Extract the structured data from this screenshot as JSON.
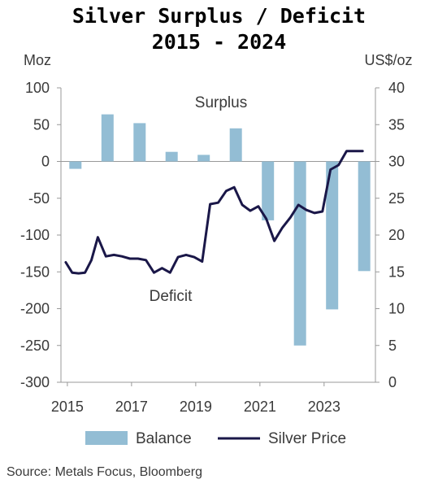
{
  "title_line1": "Silver Surplus / Deficit",
  "title_line2": "2015 - 2024",
  "source": "Source: Metals Focus, Bloomberg",
  "colors": {
    "bar": "#93bdd4",
    "line": "#1a1748",
    "axis": "#999999",
    "text": "#3a3a3a"
  },
  "chart_data": {
    "type": "bar",
    "title": "Silver Surplus / Deficit 2015 - 2024",
    "y_left_label": "Moz",
    "y_right_label": "US$/oz",
    "y_left_lim": [
      -300,
      100
    ],
    "y_right_lim": [
      0,
      40
    ],
    "y_left_ticks": [
      100,
      50,
      0,
      -50,
      -100,
      -150,
      -200,
      -250,
      -300
    ],
    "y_right_ticks": [
      40,
      35,
      30,
      25,
      20,
      15,
      10,
      5,
      0
    ],
    "x_lim": [
      2014.8,
      2024.6
    ],
    "x_ticks": [
      "2015",
      "2017",
      "2019",
      "2021",
      "2023"
    ],
    "grid": false,
    "legend_position": "bottom",
    "annotations": [
      "Surplus",
      "Deficit"
    ],
    "series": [
      {
        "name": "Balance",
        "type": "bar",
        "axis": "left",
        "categories": [
          2015,
          2016,
          2017,
          2018,
          2019,
          2020,
          2021,
          2022,
          2023,
          2024
        ],
        "values": [
          -10,
          64,
          52,
          13,
          9,
          45,
          -80,
          -250,
          -201,
          -149
        ]
      },
      {
        "name": "Silver Price",
        "type": "line",
        "axis": "right",
        "x": [
          2014.95,
          2015.15,
          2015.35,
          2015.55,
          2015.75,
          2015.95,
          2016.2,
          2016.45,
          2016.7,
          2016.95,
          2017.2,
          2017.45,
          2017.7,
          2017.95,
          2018.2,
          2018.45,
          2018.7,
          2018.95,
          2019.2,
          2019.45,
          2019.7,
          2019.95,
          2020.2,
          2020.45,
          2020.7,
          2020.95,
          2021.2,
          2021.45,
          2021.7,
          2021.95,
          2022.2,
          2022.45,
          2022.7,
          2022.95,
          2023.2,
          2023.45,
          2023.7,
          2023.95,
          2024.2,
          2024.45
        ],
        "values": [
          16.3,
          14.9,
          14.8,
          14.9,
          16.6,
          19.7,
          17.1,
          17.3,
          17.1,
          16.8,
          16.8,
          16.6,
          14.9,
          15.5,
          14.9,
          17.0,
          17.3,
          17.0,
          16.4,
          24.2,
          24.4,
          26.0,
          26.5,
          24.1,
          23.3,
          23.9,
          22.2,
          19.2,
          21.0,
          22.4,
          24.1,
          23.4,
          23.0,
          23.2,
          28.9,
          29.5,
          31.4,
          31.4,
          31.4,
          31.4
        ]
      }
    ]
  }
}
